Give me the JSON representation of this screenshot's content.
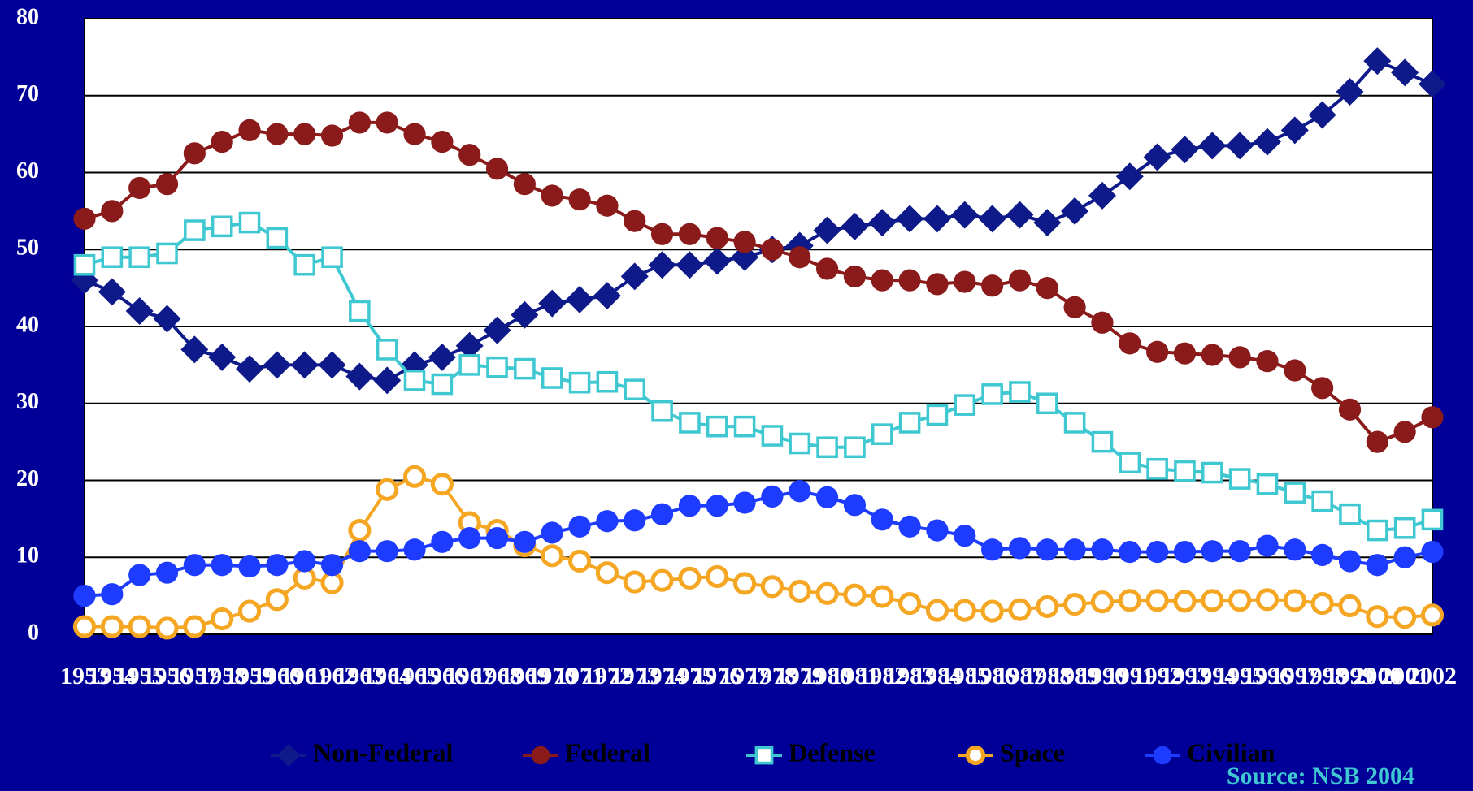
{
  "chart_data": {
    "type": "line",
    "categories": [
      "1953",
      "1954",
      "1955",
      "1956",
      "1957",
      "1958",
      "1959",
      "1960",
      "1961",
      "1962",
      "1963",
      "1964",
      "1965",
      "1966",
      "1967",
      "1968",
      "1969",
      "1970",
      "1971",
      "1972",
      "1973",
      "1974",
      "1975",
      "1976",
      "1977",
      "1978",
      "1979",
      "1980",
      "1981",
      "1982",
      "1983",
      "1984",
      "1985",
      "1986",
      "1987",
      "1988",
      "1989",
      "1990",
      "1991",
      "1992",
      "1993",
      "1994",
      "1995",
      "1996",
      "1997",
      "1998",
      "1999",
      "2000",
      "2001",
      "2002"
    ],
    "series": [
      {
        "name": "Non-Federal",
        "color": "#0e1a8a",
        "marker": "diamond",
        "values": [
          46,
          44.5,
          42,
          41,
          37,
          36,
          34.5,
          35,
          35,
          35,
          33.5,
          33,
          35,
          36,
          37.5,
          39.5,
          41.5,
          43,
          43.5,
          44,
          46.5,
          48,
          48,
          48.5,
          49,
          50,
          50.5,
          52.5,
          53,
          53.5,
          54,
          54,
          54.5,
          54,
          54.5,
          53.5,
          55,
          57,
          59.5,
          62,
          63,
          63.5,
          63.5,
          64,
          65.5,
          67.5,
          70.5,
          74.5,
          73,
          71.5
        ]
      },
      {
        "name": "Federal",
        "color": "#8b1a1a",
        "marker": "circle",
        "values": [
          54,
          55,
          58,
          58.5,
          62.5,
          64,
          65.5,
          65,
          65,
          64.8,
          66.5,
          66.5,
          65,
          64,
          62.3,
          60.5,
          58.5,
          57,
          56.5,
          55.7,
          53.7,
          52,
          52,
          51.5,
          51,
          50,
          49,
          47.5,
          46.5,
          46,
          46,
          45.5,
          45.8,
          45.3,
          46,
          45,
          42.5,
          40.5,
          37.8,
          36.7,
          36.5,
          36.3,
          36,
          35.5,
          34.3,
          32,
          29.2,
          25,
          26.3,
          28.2
        ]
      },
      {
        "name": "Defense",
        "color": "#3fc8d2",
        "marker": "square-open",
        "values": [
          48,
          49,
          49,
          49.5,
          52.5,
          53,
          53.5,
          51.5,
          48,
          49,
          42,
          37,
          33,
          32.5,
          35,
          34.7,
          34.5,
          33.3,
          32.7,
          32.8,
          31.8,
          29,
          27.5,
          27,
          27,
          25.8,
          24.8,
          24.3,
          24.3,
          26,
          27.5,
          28.5,
          29.8,
          31.2,
          31.5,
          30,
          27.5,
          25,
          22.3,
          21.5,
          21.2,
          21,
          20.2,
          19.5,
          18.4,
          17.3,
          15.6,
          13.5,
          13.8,
          14.9
        ]
      },
      {
        "name": "Space",
        "color": "#f5a623",
        "marker": "circle-open",
        "values": [
          1,
          1,
          1,
          0.8,
          1,
          2,
          3,
          4.5,
          7.3,
          6.7,
          13.5,
          18.8,
          20.5,
          19.5,
          14.5,
          13.5,
          11.5,
          10.2,
          9.5,
          8,
          6.8,
          7,
          7.3,
          7.5,
          6.6,
          6.2,
          5.6,
          5.3,
          5.1,
          4.9,
          4,
          3.1,
          3.1,
          3,
          3.2,
          3.6,
          3.9,
          4.2,
          4.4,
          4.4,
          4.3,
          4.4,
          4.4,
          4.5,
          4.4,
          4,
          3.7,
          2.3,
          2.2,
          2.5
        ]
      },
      {
        "name": "Civilian",
        "color": "#1e3cff",
        "marker": "circle",
        "values": [
          5,
          5.2,
          7.7,
          8,
          9,
          9,
          8.8,
          9,
          9.5,
          9,
          10.8,
          10.8,
          11,
          12,
          12.5,
          12.5,
          12,
          13.2,
          14,
          14.7,
          14.8,
          15.6,
          16.7,
          16.7,
          17.1,
          17.9,
          18.6,
          17.8,
          16.8,
          14.9,
          14,
          13.5,
          12.8,
          11,
          11.2,
          11,
          11,
          11,
          10.7,
          10.7,
          10.7,
          10.8,
          10.8,
          11.5,
          11,
          10.3,
          9.5,
          9,
          10,
          10.7
        ]
      }
    ],
    "ylim": [
      0,
      80
    ],
    "yticks": [
      0,
      10,
      20,
      30,
      40,
      50,
      60,
      70,
      80
    ],
    "grid": true,
    "source": "Source: NSB 2004"
  }
}
